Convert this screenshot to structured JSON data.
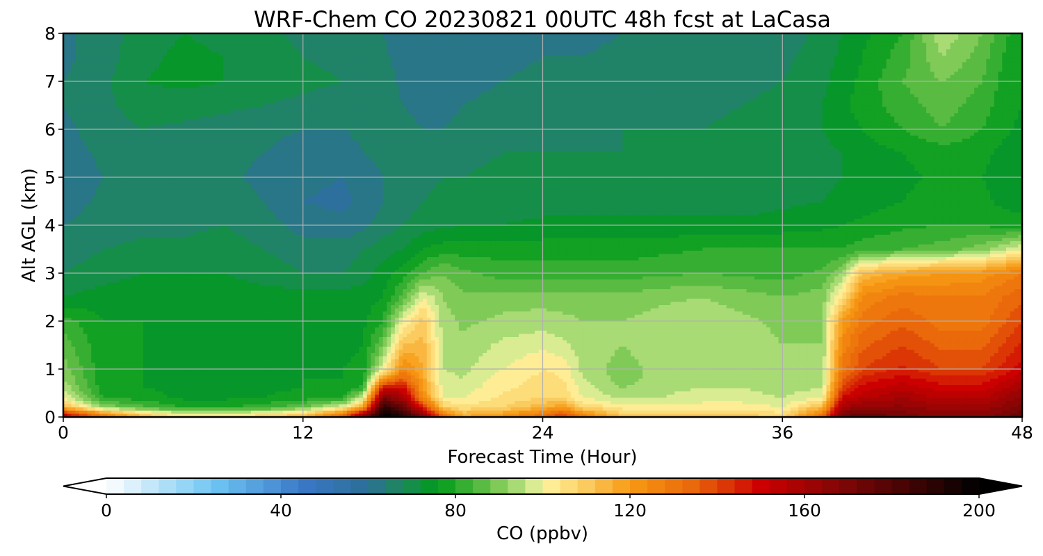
{
  "chart_data": {
    "type": "heatmap",
    "subtype": "filled-contour time-height curtain",
    "title": "WRF-Chem CO  20230821 00UTC 48h fcst at LaCasa",
    "xlabel": "Forecast Time (Hour)",
    "ylabel": "Alt AGL (km)",
    "xlim": [
      0,
      48
    ],
    "ylim": [
      0,
      8
    ],
    "x_ticks": [
      0,
      12,
      24,
      36,
      48
    ],
    "y_ticks": [
      0,
      1,
      2,
      3,
      4,
      5,
      6,
      7,
      8
    ],
    "grid": true,
    "x": [
      0,
      2,
      4,
      6,
      8,
      10,
      12,
      14,
      15,
      16,
      17,
      18,
      19,
      20,
      22,
      24,
      25,
      26,
      28,
      30,
      32,
      34,
      36,
      38,
      39,
      40,
      42,
      44,
      46,
      47,
      48
    ],
    "y": [
      0.05,
      0.2,
      0.4,
      0.6,
      0.8,
      1.0,
      1.5,
      2.0,
      2.5,
      3.0,
      3.5,
      4.0,
      4.5,
      5.0,
      5.5,
      6.0,
      6.5,
      7.0,
      7.5,
      8.0
    ],
    "values_ppbv": [
      [
        150,
        125,
        110,
        100,
        100,
        105,
        110,
        130,
        160,
        200,
        190,
        165,
        130,
        115,
        120,
        130,
        140,
        125,
        110,
        110,
        110,
        110,
        105,
        130,
        170,
        175,
        170,
        165,
        165,
        170,
        175
      ],
      [
        115,
        92,
        85,
        80,
        80,
        82,
        88,
        100,
        120,
        190,
        175,
        145,
        110,
        105,
        108,
        115,
        120,
        108,
        102,
        102,
        102,
        102,
        100,
        115,
        160,
        165,
        165,
        162,
        162,
        165,
        170
      ],
      [
        100,
        80,
        78,
        75,
        75,
        76,
        78,
        80,
        98,
        170,
        160,
        125,
        100,
        100,
        105,
        108,
        108,
        100,
        95,
        96,
        98,
        98,
        96,
        100,
        150,
        155,
        160,
        155,
        155,
        160,
        165
      ],
      [
        95,
        78,
        76,
        75,
        75,
        75,
        76,
        77,
        82,
        150,
        150,
        120,
        98,
        98,
        103,
        106,
        106,
        98,
        92,
        95,
        96,
        96,
        94,
        96,
        140,
        150,
        155,
        150,
        150,
        155,
        160
      ],
      [
        92,
        77,
        76,
        75,
        75,
        75,
        76,
        76,
        78,
        120,
        135,
        118,
        97,
        96,
        102,
        105,
        104,
        96,
        90,
        94,
        95,
        94,
        92,
        94,
        135,
        145,
        150,
        145,
        145,
        150,
        155
      ],
      [
        90,
        77,
        76,
        75,
        75,
        75,
        75,
        76,
        77,
        100,
        125,
        116,
        96,
        95,
        100,
        104,
        103,
        95,
        90,
        94,
        95,
        94,
        92,
        93,
        130,
        140,
        145,
        140,
        140,
        145,
        150
      ],
      [
        86,
        77,
        76,
        75,
        75,
        75,
        75,
        75,
        76,
        88,
        112,
        114,
        95,
        93,
        97,
        99,
        97,
        94,
        92,
        95,
        96,
        94,
        92,
        92,
        125,
        135,
        140,
        135,
        135,
        140,
        145
      ],
      [
        82,
        76,
        76,
        75,
        75,
        75,
        75,
        75,
        75,
        80,
        100,
        110,
        94,
        91,
        93,
        94,
        93,
        92,
        92,
        94,
        95,
        93,
        91,
        92,
        120,
        130,
        135,
        130,
        130,
        135,
        140
      ],
      [
        72,
        74,
        75,
        74,
        75,
        74,
        74,
        74,
        74,
        76,
        85,
        100,
        92,
        89,
        90,
        90,
        90,
        90,
        89,
        91,
        92,
        90,
        88,
        90,
        105,
        125,
        130,
        128,
        128,
        132,
        135
      ],
      [
        68,
        70,
        72,
        72,
        72,
        70,
        68,
        68,
        70,
        74,
        78,
        84,
        88,
        85,
        82,
        82,
        82,
        82,
        82,
        83,
        84,
        83,
        82,
        85,
        92,
        112,
        118,
        120,
        122,
        125,
        128
      ],
      [
        66,
        68,
        69,
        69,
        70,
        68,
        66,
        66,
        68,
        70,
        72,
        76,
        78,
        78,
        78,
        78,
        78,
        78,
        78,
        79,
        80,
        80,
        80,
        80,
        80,
        82,
        84,
        86,
        90,
        95,
        100
      ],
      [
        64,
        66,
        67,
        67,
        68,
        66,
        62,
        61,
        63,
        66,
        68,
        70,
        71,
        72,
        72,
        73,
        73,
        73,
        73,
        73,
        73,
        73,
        74,
        75,
        76,
        77,
        79,
        80,
        80,
        78,
        78
      ],
      [
        62,
        65,
        67,
        66,
        66,
        64,
        60,
        59,
        61,
        64,
        66,
        68,
        69,
        70,
        70,
        70,
        70,
        70,
        70,
        70,
        70,
        70,
        71,
        72,
        73,
        74,
        76,
        78,
        77,
        75,
        74
      ],
      [
        61,
        64,
        66,
        65,
        65,
        63,
        61,
        60,
        62,
        64,
        66,
        67,
        68,
        68,
        69,
        69,
        69,
        69,
        69,
        69,
        69,
        69,
        70,
        71,
        72,
        73,
        75,
        77,
        76,
        74,
        73
      ],
      [
        62,
        65,
        67,
        66,
        65,
        64,
        62,
        62,
        64,
        65,
        66,
        66,
        66,
        67,
        68,
        68,
        68,
        68,
        68,
        68,
        68,
        69,
        70,
        71,
        72,
        74,
        76,
        78,
        77,
        75,
        74
      ],
      [
        63,
        66,
        68,
        67,
        66,
        65,
        64,
        64,
        65,
        66,
        65,
        64,
        64,
        65,
        66,
        67,
        67,
        67,
        68,
        68,
        68,
        69,
        70,
        72,
        74,
        76,
        80,
        84,
        80,
        77,
        75
      ],
      [
        64,
        67,
        70,
        70,
        69,
        68,
        67,
        66,
        66,
        66,
        64,
        63,
        63,
        64,
        65,
        66,
        66,
        66,
        67,
        67,
        67,
        68,
        69,
        72,
        75,
        78,
        82,
        86,
        82,
        78,
        76
      ],
      [
        64,
        67,
        72,
        73,
        72,
        70,
        69,
        68,
        67,
        66,
        63,
        62,
        62,
        63,
        64,
        65,
        65,
        65,
        66,
        66,
        66,
        67,
        68,
        71,
        74,
        77,
        84,
        88,
        84,
        79,
        77
      ],
      [
        63,
        66,
        71,
        73,
        72,
        70,
        68,
        67,
        66,
        65,
        62,
        61,
        61,
        62,
        63,
        64,
        64,
        64,
        65,
        65,
        65,
        66,
        67,
        70,
        73,
        76,
        82,
        92,
        86,
        80,
        78
      ],
      [
        63,
        66,
        70,
        72,
        71,
        69,
        67,
        66,
        65,
        64,
        61,
        60,
        60,
        61,
        62,
        63,
        63,
        63,
        64,
        64,
        64,
        65,
        66,
        69,
        72,
        75,
        80,
        95,
        88,
        81,
        78
      ]
    ],
    "colorbar": {
      "label": "CO  (ppbv)",
      "min": 0,
      "max": 200,
      "extend": "both",
      "ticks": [
        0,
        40,
        80,
        120,
        160,
        200
      ],
      "stops": [
        {
          "v": 0,
          "c": "#ffffff"
        },
        {
          "v": 25,
          "c": "#6cc4f2"
        },
        {
          "v": 45,
          "c": "#3a78c8"
        },
        {
          "v": 60,
          "c": "#2c6f96"
        },
        {
          "v": 68,
          "c": "#1c8a58"
        },
        {
          "v": 76,
          "c": "#009a1a"
        },
        {
          "v": 88,
          "c": "#6cc24a"
        },
        {
          "v": 97,
          "c": "#c8e78a"
        },
        {
          "v": 100,
          "c": "#fff5a3"
        },
        {
          "v": 110,
          "c": "#fbcb5f"
        },
        {
          "v": 120,
          "c": "#f79a13"
        },
        {
          "v": 135,
          "c": "#e9650a"
        },
        {
          "v": 150,
          "c": "#cc0000"
        },
        {
          "v": 170,
          "c": "#7a0606"
        },
        {
          "v": 190,
          "c": "#2a0303"
        },
        {
          "v": 200,
          "c": "#000000"
        }
      ]
    }
  }
}
